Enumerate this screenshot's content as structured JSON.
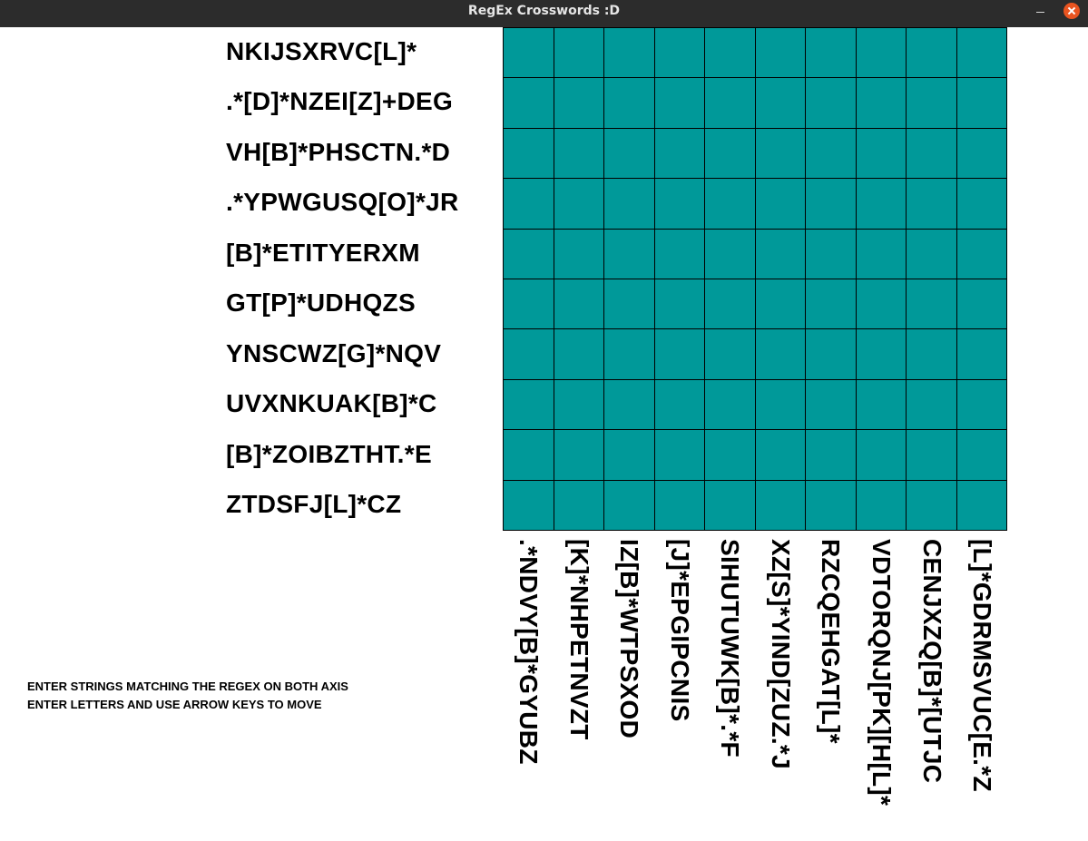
{
  "window": {
    "title": "RegEx Crosswords :D"
  },
  "colors": {
    "cell": "#009999",
    "grid_line": "#000000",
    "titlebar": "#2c2c2c",
    "close": "#e95420"
  },
  "row_clues": [
    "NKIJSXRVC[L]*",
    ".*[D]*NZEI[Z]+DEG",
    "VH[B]*PHSCTN.*D",
    ".*YPWGUSQ[O]*JR",
    "[B]*ETITYERXM",
    "GT[P]*UDHQZS",
    "YNSCWZ[G]*NQV",
    "UVXNKUAK[B]*C",
    "[B]*ZOIBZTHT.*E",
    "ZTDSFJ[L]*CZ"
  ],
  "col_clues": [
    ".*NDVY[B]*GYUBZ",
    "[K]*NHPETNVZT",
    "IZ[B]*WTPSXOD",
    "[J]*EPGIPCNIS",
    "SIHUTUWK[B]*.*F",
    "XZ[S]*YIND[ZUZ.*J",
    "RZCQEHGAT[L]*",
    "VDTORQNJ[PK][H[L]*",
    "CENJXZQ[B]*[UTJC",
    "[L]*GDRMSVUC[E.*Z"
  ],
  "grid": {
    "rows": 10,
    "cols": 10
  },
  "instructions": [
    "ENTER STRINGS MATCHING THE REGEX ON BOTH AXIS",
    "ENTER LETTERS AND USE ARROW KEYS TO MOVE"
  ]
}
